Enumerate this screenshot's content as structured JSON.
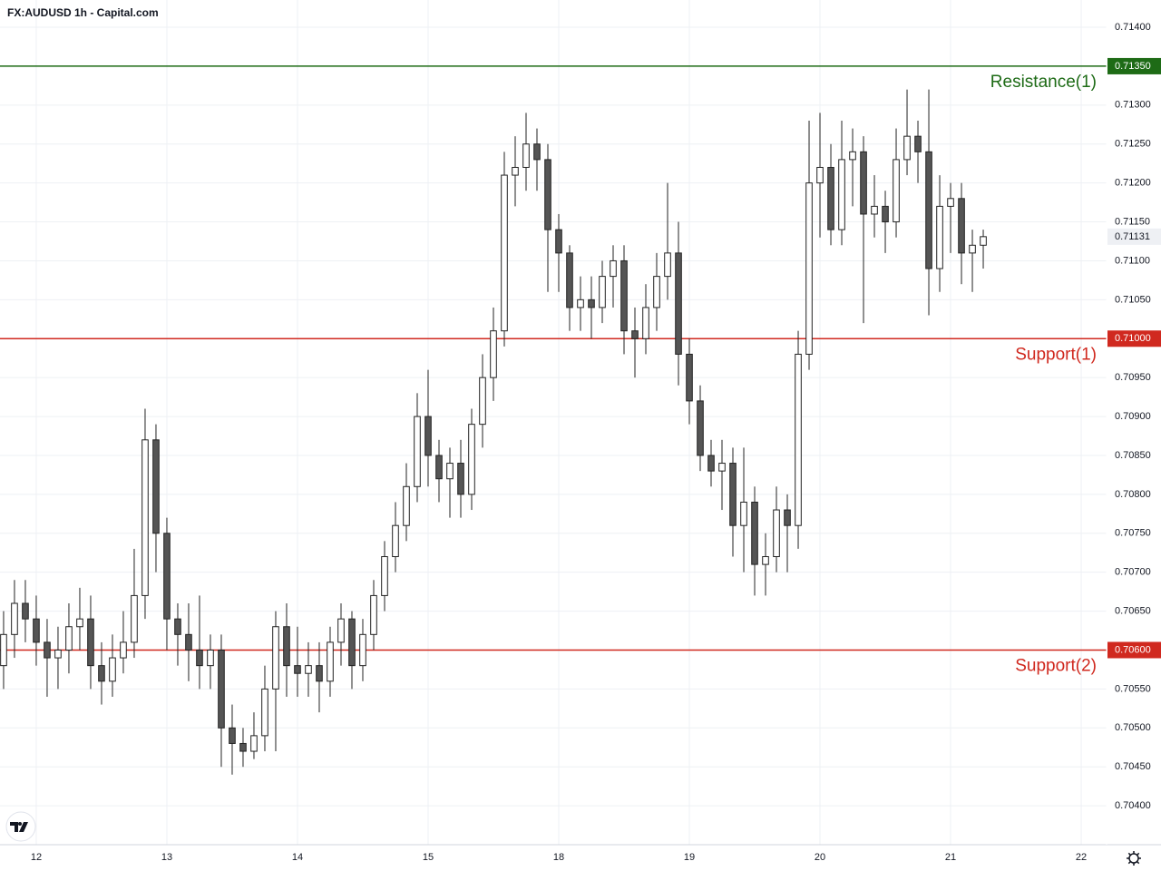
{
  "chart_data": {
    "type": "candlestick",
    "title": "FX:AUDUSD 1h - Capital.com",
    "xlim": [
      -0.33,
      101.33
    ],
    "xticks": [
      {
        "value": 3,
        "label": "12"
      },
      {
        "value": 15,
        "label": "13"
      },
      {
        "value": 27,
        "label": "14"
      },
      {
        "value": 39,
        "label": "15"
      },
      {
        "value": 51,
        "label": "18"
      },
      {
        "value": 63,
        "label": "19"
      },
      {
        "value": 75,
        "label": "20"
      },
      {
        "value": 87,
        "label": "21"
      },
      {
        "value": 99,
        "label": "22"
      }
    ],
    "ylim": [
      0.7035,
      0.71435
    ],
    "yticks": [
      {
        "value": 0.704,
        "label": "0.70400"
      },
      {
        "value": 0.7045,
        "label": "0.70450"
      },
      {
        "value": 0.705,
        "label": "0.70500"
      },
      {
        "value": 0.7055,
        "label": "0.70550"
      },
      {
        "value": 0.706,
        "label": "0.70600"
      },
      {
        "value": 0.7065,
        "label": "0.70650"
      },
      {
        "value": 0.707,
        "label": "0.70700"
      },
      {
        "value": 0.7075,
        "label": "0.70750"
      },
      {
        "value": 0.708,
        "label": "0.70800"
      },
      {
        "value": 0.7085,
        "label": "0.70850"
      },
      {
        "value": 0.709,
        "label": "0.70900"
      },
      {
        "value": 0.7095,
        "label": "0.70950"
      },
      {
        "value": 0.71,
        "label": "0.71000"
      },
      {
        "value": 0.7105,
        "label": "0.71050"
      },
      {
        "value": 0.711,
        "label": "0.71100"
      },
      {
        "value": 0.7115,
        "label": "0.71150"
      },
      {
        "value": 0.712,
        "label": "0.71200"
      },
      {
        "value": 0.7125,
        "label": "0.71250"
      },
      {
        "value": 0.713,
        "label": "0.71300"
      },
      {
        "value": 0.714,
        "label": "0.71400"
      }
    ],
    "grid": true,
    "up_color": "#ffffff",
    "down_color": "#555555",
    "outline_color": "#222222",
    "open": [
      0.7058,
      0.7062,
      0.7066,
      0.7064,
      0.7061,
      0.7059,
      0.706,
      0.7063,
      0.7064,
      0.7058,
      0.7056,
      0.7059,
      0.7061,
      0.7067,
      0.7087,
      0.7075,
      0.7064,
      0.7062,
      0.706,
      0.7058,
      0.706,
      0.705,
      0.7048,
      0.7047,
      0.7049,
      0.7055,
      0.7063,
      0.7058,
      0.7057,
      0.7058,
      0.7056,
      0.7061,
      0.7064,
      0.7058,
      0.7062,
      0.7067,
      0.7072,
      0.7076,
      0.7081,
      0.709,
      0.7085,
      0.7082,
      0.7084,
      0.708,
      0.7089,
      0.7095,
      0.7101,
      0.7121,
      0.7122,
      0.7125,
      0.7123,
      0.7114,
      0.7111,
      0.7104,
      0.7105,
      0.7104,
      0.7108,
      0.711,
      0.7101,
      0.71,
      0.7104,
      0.7108,
      0.7111,
      0.7098,
      0.7092,
      0.7085,
      0.7083,
      0.7084,
      0.7076,
      0.7079,
      0.7071,
      0.7072,
      0.7078,
      0.7076,
      0.7098,
      0.712,
      0.7122,
      0.7114,
      0.7123,
      0.7124,
      0.7116,
      0.7117,
      0.7115,
      0.7123,
      0.7126,
      0.7124,
      0.7109,
      0.7117,
      0.7118,
      0.7111,
      0.7112
    ],
    "high": [
      0.7065,
      0.7069,
      0.7069,
      0.7067,
      0.7064,
      0.7063,
      0.7066,
      0.7068,
      0.7067,
      0.7061,
      0.7062,
      0.7065,
      0.7073,
      0.7091,
      0.7089,
      0.7077,
      0.7066,
      0.7066,
      0.7067,
      0.7062,
      0.7062,
      0.7053,
      0.705,
      0.7052,
      0.7058,
      0.7065,
      0.7066,
      0.7063,
      0.7061,
      0.7061,
      0.7063,
      0.7066,
      0.7065,
      0.7064,
      0.7069,
      0.7074,
      0.7079,
      0.7084,
      0.7093,
      0.7096,
      0.7087,
      0.7086,
      0.7087,
      0.7091,
      0.7098,
      0.7104,
      0.7124,
      0.7126,
      0.7129,
      0.7127,
      0.7125,
      0.7116,
      0.7112,
      0.7108,
      0.7108,
      0.711,
      0.7112,
      0.7112,
      0.7104,
      0.7107,
      0.7111,
      0.712,
      0.7115,
      0.71,
      0.7094,
      0.7087,
      0.7087,
      0.7086,
      0.7086,
      0.7081,
      0.7075,
      0.7081,
      0.708,
      0.7101,
      0.7128,
      0.7129,
      0.7125,
      0.7128,
      0.7127,
      0.7126,
      0.7121,
      0.7119,
      0.7127,
      0.7132,
      0.7128,
      0.7132,
      0.7121,
      0.712,
      0.712,
      0.7114,
      0.7114
    ],
    "low": [
      0.7055,
      0.7059,
      0.7061,
      0.7058,
      0.7054,
      0.7055,
      0.7057,
      0.706,
      0.7055,
      0.7053,
      0.7054,
      0.7057,
      0.7059,
      0.7064,
      0.707,
      0.706,
      0.7058,
      0.7056,
      0.7055,
      0.7055,
      0.7045,
      0.7044,
      0.7045,
      0.7046,
      0.7047,
      0.7047,
      0.7054,
      0.7054,
      0.7054,
      0.7052,
      0.7054,
      0.7058,
      0.7055,
      0.7056,
      0.706,
      0.7065,
      0.707,
      0.7074,
      0.7079,
      0.7081,
      0.7079,
      0.7077,
      0.7077,
      0.7078,
      0.7086,
      0.7092,
      0.7099,
      0.7117,
      0.7119,
      0.7119,
      0.7106,
      0.7106,
      0.7101,
      0.7101,
      0.71,
      0.7102,
      0.7104,
      0.7098,
      0.7095,
      0.7098,
      0.7101,
      0.7105,
      0.7094,
      0.7089,
      0.7083,
      0.7081,
      0.7078,
      0.7072,
      0.707,
      0.7067,
      0.7067,
      0.707,
      0.707,
      0.7073,
      0.7096,
      0.7113,
      0.7112,
      0.7112,
      0.7117,
      0.7102,
      0.7113,
      0.7111,
      0.7113,
      0.7121,
      0.712,
      0.7103,
      0.7106,
      0.7111,
      0.7107,
      0.7106,
      0.7109
    ],
    "close": [
      0.7062,
      0.7066,
      0.7064,
      0.7061,
      0.7059,
      0.706,
      0.7063,
      0.7064,
      0.7058,
      0.7056,
      0.7059,
      0.7061,
      0.7067,
      0.7087,
      0.7075,
      0.7064,
      0.7062,
      0.706,
      0.7058,
      0.706,
      0.705,
      0.7048,
      0.7047,
      0.7049,
      0.7055,
      0.7063,
      0.7058,
      0.7057,
      0.7058,
      0.7056,
      0.7061,
      0.7064,
      0.7058,
      0.7062,
      0.7067,
      0.7072,
      0.7076,
      0.7081,
      0.709,
      0.7085,
      0.7082,
      0.7084,
      0.708,
      0.7089,
      0.7095,
      0.7101,
      0.7121,
      0.7122,
      0.7125,
      0.7123,
      0.7114,
      0.7111,
      0.7104,
      0.7105,
      0.7104,
      0.7108,
      0.711,
      0.7101,
      0.71,
      0.7104,
      0.7108,
      0.7111,
      0.7098,
      0.7092,
      0.7085,
      0.7083,
      0.7084,
      0.7076,
      0.7079,
      0.7071,
      0.7072,
      0.7078,
      0.7076,
      0.7098,
      0.712,
      0.7122,
      0.7114,
      0.7123,
      0.7124,
      0.7116,
      0.7117,
      0.7115,
      0.7123,
      0.7126,
      0.7124,
      0.7109,
      0.7117,
      0.7118,
      0.7111,
      0.7112,
      0.71131
    ],
    "levels": [
      {
        "name": "Resistance(1)",
        "value": 0.7135,
        "value_label": "0.71350",
        "color": "#1e6b16"
      },
      {
        "name": "Support(1)",
        "value": 0.71,
        "value_label": "0.71000",
        "color": "#d0291f"
      },
      {
        "name": "Support(2)",
        "value": 0.706,
        "value_label": "0.70600",
        "color": "#d0291f"
      }
    ]
  }
}
